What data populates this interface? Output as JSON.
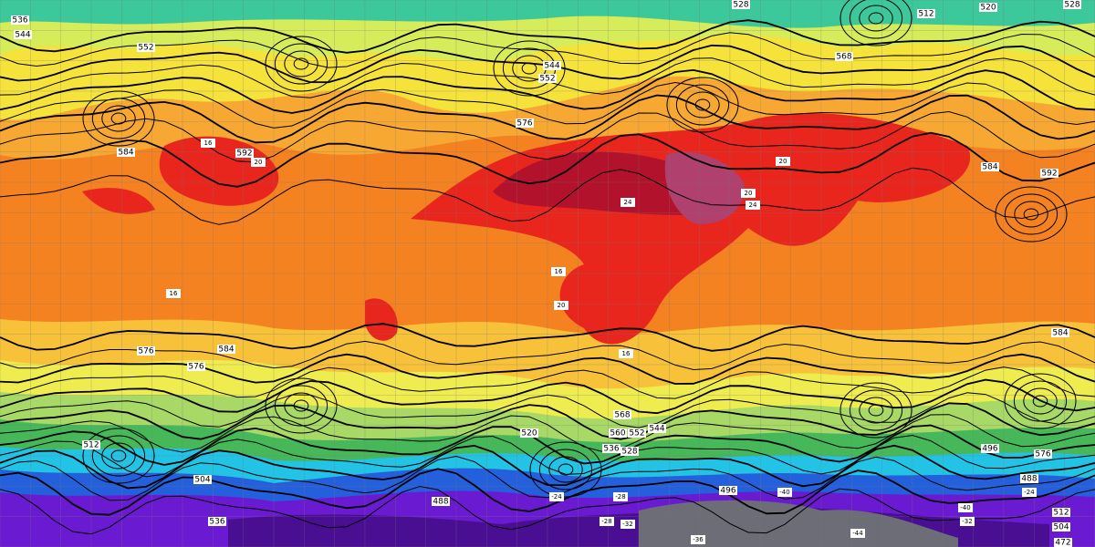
{
  "map": {
    "contour_labels": [
      "536",
      "528",
      "512",
      "520",
      "528",
      "544",
      "552",
      "552",
      "544",
      "568",
      "576",
      "584",
      "592",
      "584",
      "592",
      "576",
      "584",
      "576",
      "568",
      "560",
      "552",
      "544",
      "536",
      "528",
      "520",
      "512",
      "504",
      "496",
      "488",
      "472",
      "488",
      "496",
      "504",
      "512",
      "536",
      "576",
      "584"
    ],
    "temperature_labels": [
      "16",
      "20",
      "24",
      "20",
      "16",
      "20",
      "24",
      "16",
      "20",
      "16",
      "-24",
      "-28",
      "-32",
      "-36",
      "-40",
      "-44",
      "-32",
      "-28",
      "-24",
      "-40"
    ]
  }
}
